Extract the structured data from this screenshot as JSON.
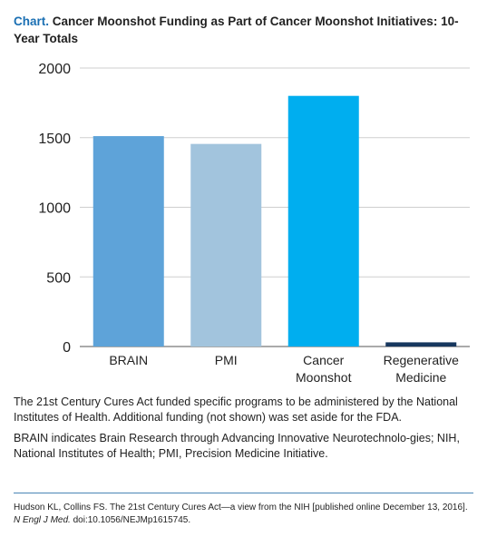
{
  "header": {
    "prefix": "Chart.",
    "title": "Cancer Moonshot Funding as Part of Cancer Moonshot Initiatives: 10-Year Totals"
  },
  "chart_data": {
    "type": "bar",
    "categories": [
      [
        "BRAIN"
      ],
      [
        "PMI"
      ],
      [
        "Cancer",
        "Moonshot"
      ],
      [
        "Regenerative",
        "Medicine"
      ]
    ],
    "values": [
      1511,
      1455,
      1800,
      30
    ],
    "colors": [
      "#5ea3d9",
      "#a2c4dd",
      "#00aeef",
      "#17375e"
    ],
    "ylim": [
      0,
      2000
    ],
    "yticks": [
      "0",
      "500",
      "1000",
      "1500",
      "2000"
    ],
    "grid": true,
    "xlabel": "",
    "ylabel": ""
  },
  "notes": {
    "p1": "The 21st Century Cures Act funded specific programs to be administered by the National Institutes of Health. Additional funding (not shown) was set aside for the FDA.",
    "p2": "BRAIN indicates Brain Research through Advancing Innovative Neurotechnolo-gies; NIH, National Institutes of Health; PMI, Precision Medicine Initiative."
  },
  "source": {
    "citation": "Hudson KL, Collins FS. The 21st Century Cures Act—a view from the NIH [published online December 13, 2016].",
    "journal": "N Engl J Med.",
    "doi": "doi:10.1056/NEJMp1615745."
  }
}
